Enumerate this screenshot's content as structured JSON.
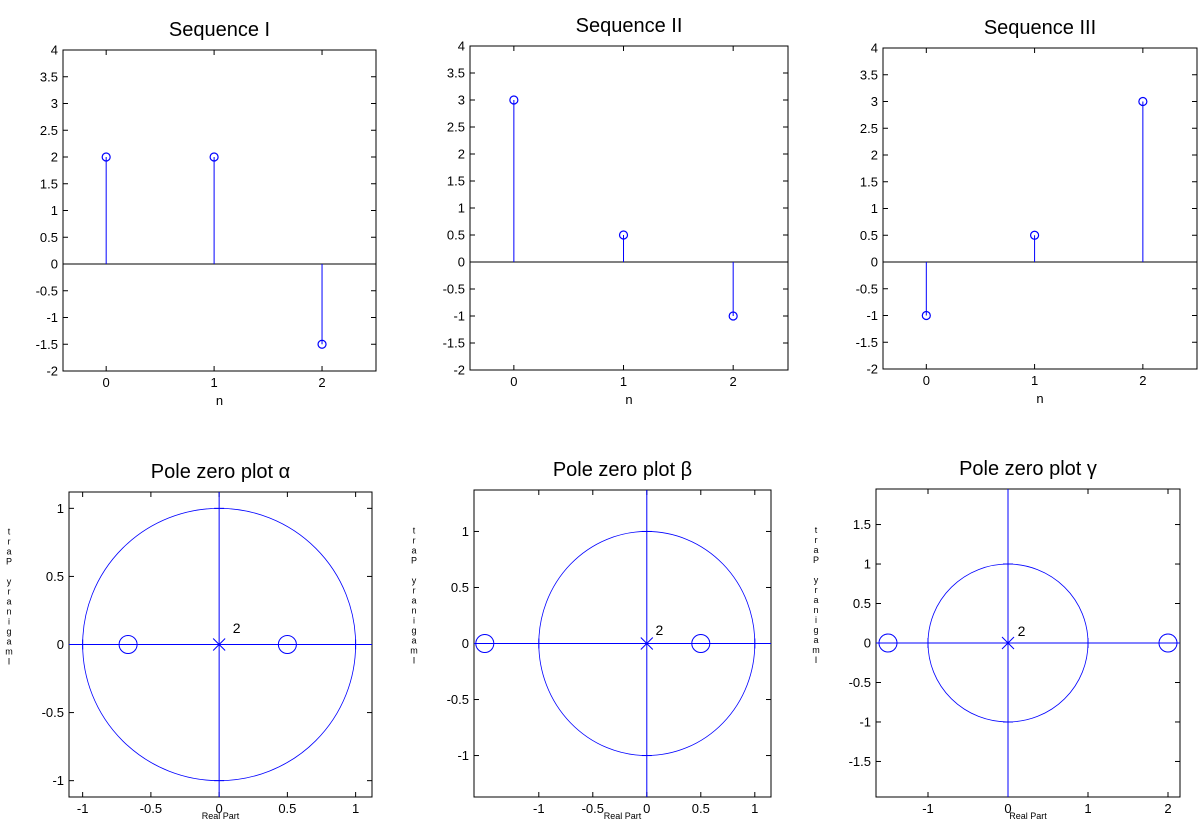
{
  "colors": {
    "series": "#0000ff",
    "axis": "#000000",
    "background": "#ffffff"
  },
  "chart_data": [
    {
      "type": "stem",
      "title": "Sequence I",
      "xlabel": "n",
      "ylabel": "",
      "xlim": [
        -0.4,
        2.5
      ],
      "ylim": [
        -2,
        4
      ],
      "xticks": [
        "0",
        "1",
        "2"
      ],
      "yticks": [
        "-2",
        "-1.5",
        "-1",
        "-0.5",
        "0",
        "0.5",
        "1",
        "1.5",
        "2",
        "2.5",
        "3",
        "3.5",
        "4"
      ],
      "series": [
        {
          "x": [
            0,
            1,
            2
          ],
          "values": [
            2,
            2,
            -1.5
          ]
        }
      ]
    },
    {
      "type": "stem",
      "title": "Sequence II",
      "xlabel": "n",
      "ylabel": "",
      "xlim": [
        -0.4,
        2.5
      ],
      "ylim": [
        -2,
        4
      ],
      "xticks": [
        "0",
        "1",
        "2"
      ],
      "yticks": [
        "-2",
        "-1.5",
        "-1",
        "-0.5",
        "0",
        "0.5",
        "1",
        "1.5",
        "2",
        "2.5",
        "3",
        "3.5",
        "4"
      ],
      "series": [
        {
          "x": [
            0,
            1,
            2
          ],
          "values": [
            3,
            0.5,
            -1
          ]
        }
      ]
    },
    {
      "type": "stem",
      "title": "Sequence III",
      "xlabel": "n",
      "ylabel": "",
      "xlim": [
        -0.4,
        2.5
      ],
      "ylim": [
        -2,
        4
      ],
      "xticks": [
        "0",
        "1",
        "2"
      ],
      "yticks": [
        "-2",
        "-1.5",
        "-1",
        "-0.5",
        "0",
        "0.5",
        "1",
        "1.5",
        "2",
        "2.5",
        "3",
        "3.5",
        "4"
      ],
      "series": [
        {
          "x": [
            0,
            1,
            2
          ],
          "values": [
            -1,
            0.5,
            3
          ]
        }
      ]
    },
    {
      "type": "scatter",
      "title": "Pole zero plot α",
      "xlabel": "Real Part",
      "ylabel": "Imaginary Part",
      "xlim": [
        -1.1,
        1.12
      ],
      "ylim": [
        -1.12,
        1.12
      ],
      "xticks": [
        "-1",
        "-0.5",
        "0",
        "0.5",
        "1"
      ],
      "yticks": [
        "-1",
        "-0.5",
        "0",
        "0.5",
        "1"
      ],
      "unit_circle": true,
      "zeros": [
        {
          "re": -0.667,
          "im": 0
        },
        {
          "re": 0.5,
          "im": 0
        }
      ],
      "poles": [
        {
          "re": 0,
          "im": 0
        }
      ],
      "annotations": [
        {
          "re": 0.1,
          "im": 0.12,
          "text": "2"
        }
      ]
    },
    {
      "type": "scatter",
      "title": "Pole zero plot β",
      "xlabel": "Real Part",
      "ylabel": "Imaginary Part",
      "xlim": [
        -1.6,
        1.15
      ],
      "ylim": [
        -1.37,
        1.37
      ],
      "xticks": [
        "-1",
        "-0.5",
        "0",
        "0.5",
        "1"
      ],
      "yticks": [
        "-1",
        "-0.5",
        "0",
        "0.5",
        "1"
      ],
      "unit_circle": true,
      "zeros": [
        {
          "re": -1.5,
          "im": 0
        },
        {
          "re": 0.5,
          "im": 0
        }
      ],
      "poles": [
        {
          "re": 0,
          "im": 0
        }
      ],
      "annotations": [
        {
          "re": 0.08,
          "im": 0.12,
          "text": "2"
        }
      ]
    },
    {
      "type": "scatter",
      "title": "Pole zero plot γ",
      "xlabel": "Real Part",
      "ylabel": "Imaginary Part",
      "xlim": [
        -1.65,
        2.15
      ],
      "ylim": [
        -1.95,
        1.95
      ],
      "xticks": [
        "-1",
        "0",
        "1",
        "2"
      ],
      "yticks": [
        "-1.5",
        "-1",
        "-0.5",
        "0",
        "0.5",
        "1",
        "1.5"
      ],
      "unit_circle": true,
      "zeros": [
        {
          "re": -1.5,
          "im": 0
        },
        {
          "re": 2,
          "im": 0
        }
      ],
      "poles": [
        {
          "re": 0,
          "im": 0
        }
      ],
      "annotations": [
        {
          "re": 0.12,
          "im": 0.15,
          "text": "2"
        }
      ]
    }
  ]
}
